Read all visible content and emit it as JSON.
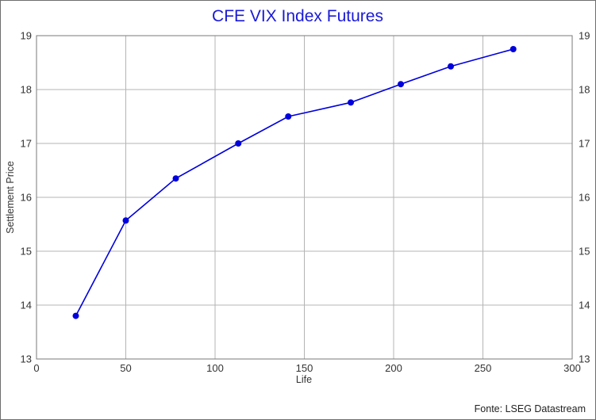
{
  "chart_data": {
    "type": "line",
    "title": "CFE VIX Index Futures",
    "xlabel": "Life",
    "ylabel": "Settlement Price",
    "xlim": [
      0,
      300
    ],
    "ylim": [
      13,
      19
    ],
    "x_ticks": [
      "0",
      "50",
      "100",
      "150",
      "200",
      "250",
      "300"
    ],
    "y_ticks": [
      "13",
      "14",
      "15",
      "16",
      "17",
      "18",
      "19"
    ],
    "grid": true,
    "y_axis_mirrored_right": true,
    "series": [
      {
        "color": "#0000dd",
        "points": [
          {
            "x": 22,
            "y": 13.8
          },
          {
            "x": 50,
            "y": 15.57
          },
          {
            "x": 78,
            "y": 16.35
          },
          {
            "x": 113,
            "y": 17.0
          },
          {
            "x": 141,
            "y": 17.5
          },
          {
            "x": 176,
            "y": 17.76
          },
          {
            "x": 204,
            "y": 18.1
          },
          {
            "x": 232,
            "y": 18.43
          },
          {
            "x": 267,
            "y": 18.75
          }
        ]
      }
    ]
  },
  "source": "Fonte: LSEG Datastream"
}
